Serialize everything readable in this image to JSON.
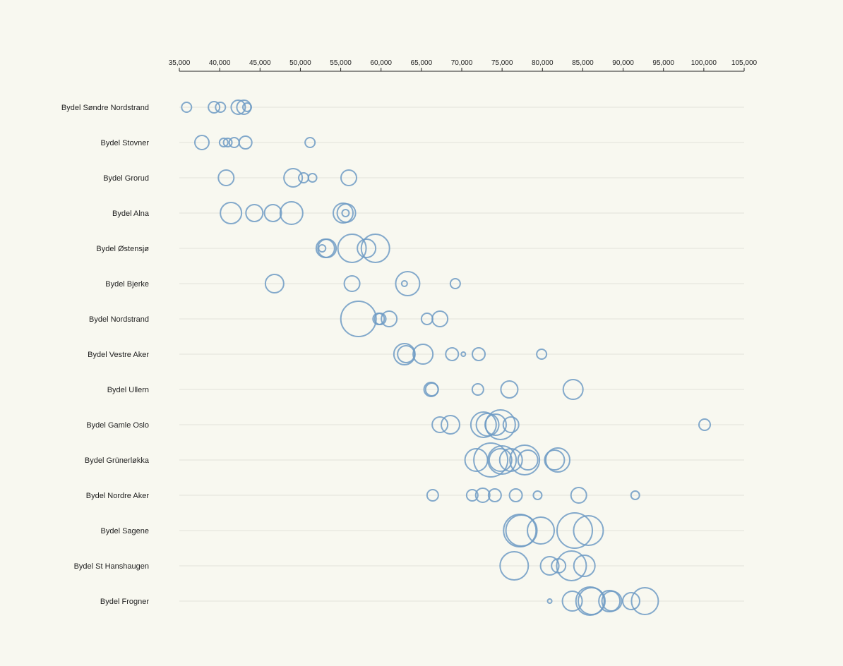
{
  "chart_data": {
    "type": "scatter",
    "title": "",
    "xlabel": "",
    "ylabel": "",
    "xlim": [
      35000,
      105000
    ],
    "x_ticks": [
      35000,
      40000,
      45000,
      50000,
      55000,
      60000,
      65000,
      70000,
      75000,
      80000,
      85000,
      90000,
      95000,
      100000,
      105000
    ],
    "x_tick_labels": [
      "35,000",
      "40,000",
      "45,000",
      "50,000",
      "55,000",
      "60,000",
      "65,000",
      "70,000",
      "75,000",
      "80,000",
      "85,000",
      "90,000",
      "95,000",
      "100,000",
      "105,000"
    ],
    "grid": false,
    "legend": "none",
    "color": "#6f9bc4",
    "size_note": "bubble radius in relative units",
    "categories": [
      "Bydel Søndre Nordstrand",
      "Bydel Stovner",
      "Bydel Grorud",
      "Bydel Alna",
      "Bydel Østensjø",
      "Bydel Bjerke",
      "Bydel Nordstrand",
      "Bydel Vestre Aker",
      "Bydel Ullern",
      "Bydel Gamle Oslo",
      "Bydel Grünerløkka",
      "Bydel Nordre Aker",
      "Bydel Sagene",
      "Bydel St Hanshaugen",
      "Bydel Frogner"
    ],
    "series": [
      {
        "points": [
          {
            "x": 35900,
            "r": 7
          },
          {
            "x": 39300,
            "r": 8
          },
          {
            "x": 40100,
            "r": 7
          },
          {
            "x": 42300,
            "r": 10
          },
          {
            "x": 43000,
            "r": 10
          },
          {
            "x": 43400,
            "r": 6
          }
        ]
      },
      {
        "points": [
          {
            "x": 37800,
            "r": 10
          },
          {
            "x": 40500,
            "r": 6
          },
          {
            "x": 41000,
            "r": 6
          },
          {
            "x": 41800,
            "r": 7
          },
          {
            "x": 43200,
            "r": 9
          },
          {
            "x": 51200,
            "r": 7
          }
        ]
      },
      {
        "points": [
          {
            "x": 40800,
            "r": 11
          },
          {
            "x": 49100,
            "r": 13
          },
          {
            "x": 50400,
            "r": 7
          },
          {
            "x": 51500,
            "r": 6
          },
          {
            "x": 56000,
            "r": 11
          }
        ]
      },
      {
        "points": [
          {
            "x": 41400,
            "r": 15
          },
          {
            "x": 44300,
            "r": 12
          },
          {
            "x": 46600,
            "r": 12
          },
          {
            "x": 48900,
            "r": 16
          },
          {
            "x": 55300,
            "r": 14
          },
          {
            "x": 55700,
            "r": 13
          },
          {
            "x": 55600,
            "r": 5
          }
        ]
      },
      {
        "points": [
          {
            "x": 52700,
            "r": 5
          },
          {
            "x": 53100,
            "r": 13
          },
          {
            "x": 53300,
            "r": 13
          },
          {
            "x": 56400,
            "r": 20
          },
          {
            "x": 58200,
            "r": 13
          },
          {
            "x": 59300,
            "r": 20
          }
        ]
      },
      {
        "points": [
          {
            "x": 46800,
            "r": 13
          },
          {
            "x": 56400,
            "r": 11
          },
          {
            "x": 62900,
            "r": 4
          },
          {
            "x": 63300,
            "r": 17
          },
          {
            "x": 69200,
            "r": 7
          }
        ]
      },
      {
        "points": [
          {
            "x": 57200,
            "r": 25
          },
          {
            "x": 59700,
            "r": 8
          },
          {
            "x": 59900,
            "r": 8
          },
          {
            "x": 61000,
            "r": 11
          },
          {
            "x": 65700,
            "r": 8
          },
          {
            "x": 67300,
            "r": 11
          }
        ]
      },
      {
        "points": [
          {
            "x": 62900,
            "r": 15
          },
          {
            "x": 63100,
            "r": 12
          },
          {
            "x": 65200,
            "r": 14
          },
          {
            "x": 68800,
            "r": 9
          },
          {
            "x": 70200,
            "r": 3
          },
          {
            "x": 72100,
            "r": 9
          },
          {
            "x": 79900,
            "r": 7
          }
        ]
      },
      {
        "points": [
          {
            "x": 66200,
            "r": 10
          },
          {
            "x": 66300,
            "r": 9
          },
          {
            "x": 72000,
            "r": 8
          },
          {
            "x": 75900,
            "r": 12
          },
          {
            "x": 83800,
            "r": 14
          }
        ]
      },
      {
        "points": [
          {
            "x": 67300,
            "r": 11
          },
          {
            "x": 68600,
            "r": 13
          },
          {
            "x": 72700,
            "r": 18
          },
          {
            "x": 73200,
            "r": 16
          },
          {
            "x": 74200,
            "r": 15
          },
          {
            "x": 74800,
            "r": 21
          },
          {
            "x": 76100,
            "r": 11
          },
          {
            "x": 100100,
            "r": 8
          }
        ]
      },
      {
        "points": [
          {
            "x": 71800,
            "r": 16
          },
          {
            "x": 73600,
            "r": 24
          },
          {
            "x": 74800,
            "r": 16
          },
          {
            "x": 75000,
            "r": 20
          },
          {
            "x": 76100,
            "r": 16
          },
          {
            "x": 77800,
            "r": 21
          },
          {
            "x": 78200,
            "r": 14
          },
          {
            "x": 81500,
            "r": 14
          },
          {
            "x": 81900,
            "r": 17
          }
        ]
      },
      {
        "points": [
          {
            "x": 66400,
            "r": 8
          },
          {
            "x": 71300,
            "r": 8
          },
          {
            "x": 72600,
            "r": 10
          },
          {
            "x": 74100,
            "r": 9
          },
          {
            "x": 76700,
            "r": 9
          },
          {
            "x": 79400,
            "r": 6
          },
          {
            "x": 84500,
            "r": 11
          },
          {
            "x": 91500,
            "r": 6
          }
        ]
      },
      {
        "points": [
          {
            "x": 77200,
            "r": 23
          },
          {
            "x": 77400,
            "r": 22
          },
          {
            "x": 79800,
            "r": 19
          },
          {
            "x": 84000,
            "r": 25
          },
          {
            "x": 85700,
            "r": 21
          }
        ]
      },
      {
        "points": [
          {
            "x": 76500,
            "r": 20
          },
          {
            "x": 80900,
            "r": 13
          },
          {
            "x": 82000,
            "r": 10
          },
          {
            "x": 83600,
            "r": 21
          },
          {
            "x": 85200,
            "r": 15
          }
        ]
      },
      {
        "points": [
          {
            "x": 80900,
            "r": 3
          },
          {
            "x": 83700,
            "r": 14
          },
          {
            "x": 85900,
            "r": 20
          },
          {
            "x": 86100,
            "r": 19
          },
          {
            "x": 88300,
            "r": 15
          },
          {
            "x": 88600,
            "r": 14
          },
          {
            "x": 91000,
            "r": 12
          },
          {
            "x": 92700,
            "r": 19
          }
        ]
      }
    ]
  }
}
